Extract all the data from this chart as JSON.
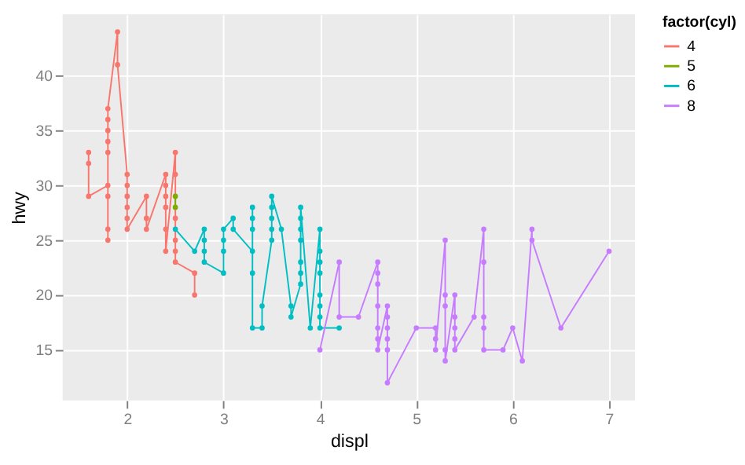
{
  "chart_data": {
    "type": "line",
    "xlabel": "displ",
    "ylabel": "hwy",
    "legend_title": "factor(cyl)",
    "marker": "circle",
    "grid": true,
    "legend": "right",
    "xlim": [
      1.33,
      7.27
    ],
    "ylim": [
      10.4,
      45.6
    ],
    "xticks": [
      2,
      3,
      4,
      5,
      6,
      7
    ],
    "yticks": [
      15,
      20,
      25,
      30,
      35,
      40
    ],
    "series": [
      {
        "name": "4",
        "color": "#f8766d",
        "x": [
          1.6,
          1.6,
          1.6,
          1.8,
          1.8,
          1.8,
          1.8,
          1.8,
          1.8,
          1.8,
          1.8,
          1.8,
          1.9,
          1.9,
          2.0,
          2.0,
          2.0,
          2.0,
          2.0,
          2.0,
          2.2,
          2.2,
          2.2,
          2.4,
          2.4,
          2.4,
          2.4,
          2.4,
          2.4,
          2.5,
          2.5,
          2.5,
          2.5,
          2.5,
          2.5,
          2.7,
          2.7
        ],
        "values": [
          33,
          32,
          29,
          30,
          25,
          26,
          29,
          33,
          34,
          35,
          36,
          37,
          44,
          41,
          31,
          30,
          29,
          28,
          27,
          26,
          29,
          27,
          26,
          31,
          30,
          29,
          28,
          26,
          24,
          33,
          31,
          27,
          25,
          24,
          23,
          22,
          20
        ]
      },
      {
        "name": "5",
        "color": "#7cae00",
        "x": [
          2.5,
          2.5
        ],
        "values": [
          29,
          28
        ]
      },
      {
        "name": "6",
        "color": "#00bfc4",
        "x": [
          2.5,
          2.7,
          2.8,
          2.8,
          2.8,
          2.8,
          3.0,
          3.0,
          3.0,
          3.0,
          3.1,
          3.1,
          3.3,
          3.3,
          3.3,
          3.3,
          3.3,
          3.3,
          3.4,
          3.4,
          3.5,
          3.5,
          3.5,
          3.5,
          3.5,
          3.6,
          3.7,
          3.7,
          3.8,
          3.8,
          3.8,
          3.8,
          3.8,
          3.8,
          3.8,
          3.9,
          4.0,
          4.0,
          4.0,
          4.0,
          4.0,
          4.0,
          4.0,
          4.0,
          4.2
        ],
        "values": [
          26,
          24,
          26,
          25,
          24,
          23,
          22,
          24,
          25,
          26,
          27,
          26,
          24,
          28,
          27,
          26,
          22,
          17,
          17,
          19,
          25,
          26,
          27,
          28,
          29,
          26,
          19,
          18,
          21,
          22,
          23,
          25,
          26,
          27,
          28,
          17,
          26,
          24,
          23,
          22,
          20,
          19,
          18,
          17,
          17
        ]
      },
      {
        "name": "8",
        "color": "#c77cff",
        "x": [
          4.0,
          4.2,
          4.2,
          4.4,
          4.6,
          4.6,
          4.6,
          4.6,
          4.6,
          4.6,
          4.6,
          4.7,
          4.7,
          4.7,
          4.7,
          4.7,
          4.7,
          5.0,
          5.2,
          5.2,
          5.2,
          5.3,
          5.3,
          5.3,
          5.3,
          5.3,
          5.4,
          5.4,
          5.4,
          5.4,
          5.4,
          5.6,
          5.7,
          5.7,
          5.7,
          5.7,
          5.7,
          5.9,
          6.0,
          6.1,
          6.2,
          6.2,
          6.5,
          7.0
        ],
        "values": [
          15,
          23,
          18,
          18,
          23,
          22,
          21,
          19,
          17,
          16,
          15,
          19,
          18,
          17,
          16,
          15,
          12,
          17,
          17,
          16,
          15,
          25,
          20,
          19,
          15,
          14,
          20,
          18,
          17,
          16,
          15,
          18,
          26,
          23,
          18,
          17,
          15,
          15,
          17,
          14,
          26,
          25,
          17,
          24
        ]
      }
    ]
  }
}
